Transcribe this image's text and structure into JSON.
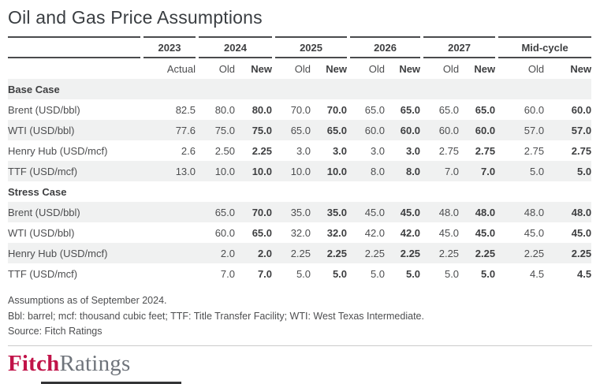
{
  "title": "Oil and Gas Price Assumptions",
  "colors": {
    "accent_red": "#C11349",
    "logo_gray": "#6F747B",
    "row_stripe": "#F0F1F1",
    "text": "#4D4E50",
    "header_rule": "#4A4B4D",
    "light_rule": "#CBCBCB",
    "bottom_bar": "#333436"
  },
  "table": {
    "col_groups": [
      {
        "year": "2023",
        "sub": [
          "Actual"
        ]
      },
      {
        "year": "2024",
        "sub": [
          "Old",
          "New"
        ]
      },
      {
        "year": "2025",
        "sub": [
          "Old",
          "New"
        ]
      },
      {
        "year": "2026",
        "sub": [
          "Old",
          "New"
        ]
      },
      {
        "year": "2027",
        "sub": [
          "Old",
          "New"
        ]
      },
      {
        "year": "Mid-cycle",
        "sub": [
          "Old",
          "New"
        ]
      }
    ],
    "sections": [
      {
        "name": "Base Case",
        "rows": [
          {
            "label": "Brent (USD/bbl)",
            "values": [
              "82.5",
              "80.0",
              "80.0",
              "70.0",
              "70.0",
              "65.0",
              "65.0",
              "65.0",
              "65.0",
              "60.0",
              "60.0"
            ]
          },
          {
            "label": "WTI (USD/bbl)",
            "values": [
              "77.6",
              "75.0",
              "75.0",
              "65.0",
              "65.0",
              "60.0",
              "60.0",
              "60.0",
              "60.0",
              "57.0",
              "57.0"
            ]
          },
          {
            "label": "Henry Hub (USD/mcf)",
            "values": [
              "2.6",
              "2.50",
              "2.25",
              "3.0",
              "3.0",
              "3.0",
              "3.0",
              "2.75",
              "2.75",
              "2.75",
              "2.75"
            ]
          },
          {
            "label": "TTF (USD/mcf)",
            "values": [
              "13.0",
              "10.0",
              "10.0",
              "10.0",
              "10.0",
              "8.0",
              "8.0",
              "7.0",
              "7.0",
              "5.0",
              "5.0"
            ]
          }
        ]
      },
      {
        "name": "Stress Case",
        "rows": [
          {
            "label": "Brent (USD/bbl)",
            "values": [
              "",
              "65.0",
              "70.0",
              "35.0",
              "35.0",
              "45.0",
              "45.0",
              "48.0",
              "48.0",
              "48.0",
              "48.0"
            ]
          },
          {
            "label": "WTI (USD/bbl)",
            "values": [
              "",
              "60.0",
              "65.0",
              "32.0",
              "32.0",
              "42.0",
              "42.0",
              "45.0",
              "45.0",
              "45.0",
              "45.0"
            ]
          },
          {
            "label": "Henry Hub (USD/mcf)",
            "values": [
              "",
              "2.0",
              "2.0",
              "2.25",
              "2.25",
              "2.25",
              "2.25",
              "2.25",
              "2.25",
              "2.25",
              "2.25"
            ]
          },
          {
            "label": "TTF (USD/mcf)",
            "values": [
              "",
              "7.0",
              "7.0",
              "5.0",
              "5.0",
              "5.0",
              "5.0",
              "5.0",
              "5.0",
              "4.5",
              "4.5"
            ]
          }
        ]
      }
    ]
  },
  "chart_data": {
    "type": "table",
    "title": "Oil and Gas Price Assumptions",
    "columns": [
      "2023 Actual",
      "2024 Old",
      "2024 New",
      "2025 Old",
      "2025 New",
      "2026 Old",
      "2026 New",
      "2027 Old",
      "2027 New",
      "Mid-cycle Old",
      "Mid-cycle New"
    ],
    "rows": [
      {
        "section": "Base Case",
        "label": "Brent (USD/bbl)",
        "values": [
          82.5,
          80.0,
          80.0,
          70.0,
          70.0,
          65.0,
          65.0,
          65.0,
          65.0,
          60.0,
          60.0
        ]
      },
      {
        "section": "Base Case",
        "label": "WTI (USD/bbl)",
        "values": [
          77.6,
          75.0,
          75.0,
          65.0,
          65.0,
          60.0,
          60.0,
          60.0,
          60.0,
          57.0,
          57.0
        ]
      },
      {
        "section": "Base Case",
        "label": "Henry Hub (USD/mcf)",
        "values": [
          2.6,
          2.5,
          2.25,
          3.0,
          3.0,
          3.0,
          3.0,
          2.75,
          2.75,
          2.75,
          2.75
        ]
      },
      {
        "section": "Base Case",
        "label": "TTF (USD/mcf)",
        "values": [
          13.0,
          10.0,
          10.0,
          10.0,
          10.0,
          8.0,
          8.0,
          7.0,
          7.0,
          5.0,
          5.0
        ]
      },
      {
        "section": "Stress Case",
        "label": "Brent (USD/bbl)",
        "values": [
          null,
          65.0,
          70.0,
          35.0,
          35.0,
          45.0,
          45.0,
          48.0,
          48.0,
          48.0,
          48.0
        ]
      },
      {
        "section": "Stress Case",
        "label": "WTI (USD/bbl)",
        "values": [
          null,
          60.0,
          65.0,
          32.0,
          32.0,
          42.0,
          42.0,
          45.0,
          45.0,
          45.0,
          45.0
        ]
      },
      {
        "section": "Stress Case",
        "label": "Henry Hub (USD/mcf)",
        "values": [
          null,
          2.0,
          2.0,
          2.25,
          2.25,
          2.25,
          2.25,
          2.25,
          2.25,
          2.25,
          2.25
        ]
      },
      {
        "section": "Stress Case",
        "label": "TTF (USD/mcf)",
        "values": [
          null,
          7.0,
          7.0,
          5.0,
          5.0,
          5.0,
          5.0,
          5.0,
          5.0,
          4.5,
          4.5
        ]
      }
    ]
  },
  "footnotes": [
    "Assumptions as of September 2024.",
    "Bbl: barrel; mcf: thousand cubic feet; TTF: Title Transfer Facility; WTI: West Texas Intermediate.",
    "Source: Fitch Ratings"
  ],
  "logo": {
    "fitch": "Fitch",
    "ratings": "Ratings"
  }
}
